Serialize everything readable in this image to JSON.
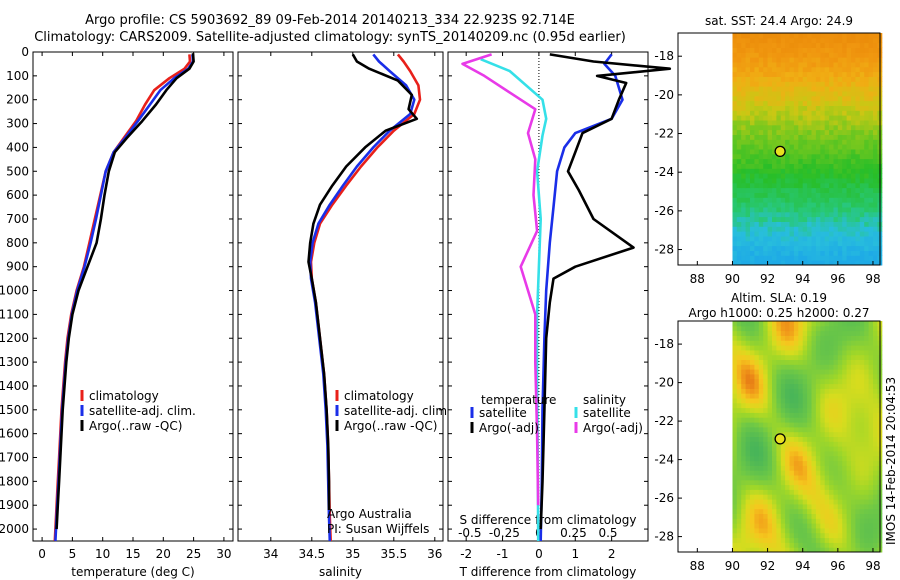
{
  "header": {
    "line1": "Argo profile: CS 5903692_89 09-Feb-2014 20140213_334 22.923S 92.714E",
    "line2": "Climatology: CARS2009. Satellite-adjusted climatology: synTS_20140209.nc (0.95d earlier)"
  },
  "colors": {
    "climatology": "#e8201a",
    "satellite": "#1a2ee8",
    "argo": "#000000",
    "satellite_salinity": "#35e0e8",
    "argo_salinity": "#e83ae8"
  },
  "depth_axis": {
    "ylim": [
      0,
      2050
    ],
    "ticks": [
      0,
      100,
      200,
      300,
      400,
      500,
      600,
      700,
      800,
      900,
      1000,
      1100,
      1200,
      1300,
      1400,
      1500,
      1600,
      1700,
      1800,
      1900,
      2000
    ]
  },
  "chart_data": [
    {
      "type": "line",
      "id": "temperature",
      "xlabel": "temperature (deg C)",
      "xlim": [
        -1.5,
        31.5
      ],
      "xticks": [
        "0",
        "5",
        "10",
        "15",
        "20",
        "25",
        "30"
      ],
      "xtick_values": [
        0,
        5,
        10,
        15,
        20,
        25,
        30
      ],
      "legend": [
        "climatology",
        "satellite-adj. clim.",
        "Argo(..raw -QC)"
      ],
      "series": [
        {
          "name": "climatology",
          "key": "climatology",
          "points": [
            [
              24.3,
              10
            ],
            [
              24.4,
              40
            ],
            [
              23.5,
              70
            ],
            [
              21.0,
              110
            ],
            [
              18.5,
              160
            ],
            [
              17.0,
              220
            ],
            [
              15.5,
              290
            ],
            [
              13.5,
              360
            ],
            [
              11.8,
              420
            ],
            [
              10.5,
              500
            ],
            [
              9.6,
              600
            ],
            [
              8.7,
              700
            ],
            [
              7.8,
              800
            ],
            [
              6.9,
              900
            ],
            [
              5.7,
              1000
            ],
            [
              4.8,
              1100
            ],
            [
              4.2,
              1200
            ],
            [
              3.8,
              1300
            ],
            [
              3.5,
              1400
            ],
            [
              3.2,
              1500
            ],
            [
              3.0,
              1600
            ],
            [
              2.8,
              1700
            ],
            [
              2.6,
              1800
            ],
            [
              2.4,
              1900
            ],
            [
              2.2,
              2000
            ],
            [
              2.1,
              2050
            ]
          ]
        },
        {
          "name": "satellite-adj. clim.",
          "key": "satellite",
          "points": [
            [
              24.8,
              10
            ],
            [
              24.9,
              40
            ],
            [
              24.1,
              70
            ],
            [
              21.8,
              110
            ],
            [
              19.5,
              160
            ],
            [
              17.8,
              220
            ],
            [
              15.8,
              290
            ],
            [
              13.7,
              360
            ],
            [
              11.8,
              420
            ],
            [
              10.5,
              500
            ],
            [
              9.7,
              600
            ],
            [
              8.9,
              700
            ],
            [
              8.0,
              800
            ],
            [
              7.0,
              900
            ],
            [
              5.8,
              1000
            ],
            [
              4.9,
              1100
            ],
            [
              4.3,
              1200
            ],
            [
              3.9,
              1300
            ],
            [
              3.6,
              1400
            ],
            [
              3.3,
              1500
            ],
            [
              3.1,
              1600
            ],
            [
              2.9,
              1700
            ],
            [
              2.7,
              1800
            ],
            [
              2.5,
              1900
            ],
            [
              2.3,
              2000
            ],
            [
              2.2,
              2050
            ]
          ]
        },
        {
          "name": "Argo(..raw -QC)",
          "key": "argo",
          "points": [
            [
              24.9,
              5
            ],
            [
              25.0,
              40
            ],
            [
              24.3,
              70
            ],
            [
              22.2,
              110
            ],
            [
              20.5,
              160
            ],
            [
              18.8,
              220
            ],
            [
              16.5,
              290
            ],
            [
              14.0,
              360
            ],
            [
              12.0,
              420
            ],
            [
              11.0,
              500
            ],
            [
              10.3,
              600
            ],
            [
              9.7,
              700
            ],
            [
              9.0,
              800
            ],
            [
              7.5,
              900
            ],
            [
              6.0,
              1000
            ],
            [
              5.0,
              1100
            ],
            [
              4.4,
              1200
            ],
            [
              4.0,
              1300
            ],
            [
              3.7,
              1400
            ],
            [
              3.4,
              1500
            ],
            [
              3.2,
              1600
            ],
            [
              3.0,
              1700
            ],
            [
              2.8,
              1800
            ],
            [
              2.6,
              1900
            ],
            [
              2.4,
              2000
            ]
          ]
        }
      ]
    },
    {
      "type": "line",
      "id": "salinity",
      "xlabel": "salinity",
      "xlim": [
        33.6,
        36.1
      ],
      "xticks": [
        "34",
        "34.5",
        "35",
        "35.5",
        "36"
      ],
      "xtick_values": [
        34,
        34.5,
        35,
        35.5,
        36
      ],
      "legend": [
        "climatology",
        "satellite-adj. clim.",
        "Argo(..raw -QC)"
      ],
      "annotation": [
        "Argo Australia",
        "PI: Susan Wijffels"
      ],
      "series": [
        {
          "name": "climatology",
          "key": "climatology",
          "points": [
            [
              35.55,
              10
            ],
            [
              35.62,
              40
            ],
            [
              35.7,
              80
            ],
            [
              35.8,
              140
            ],
            [
              35.82,
              200
            ],
            [
              35.75,
              260
            ],
            [
              35.5,
              330
            ],
            [
              35.3,
              400
            ],
            [
              35.1,
              480
            ],
            [
              34.92,
              560
            ],
            [
              34.75,
              640
            ],
            [
              34.6,
              720
            ],
            [
              34.53,
              800
            ],
            [
              34.49,
              880
            ],
            [
              34.5,
              950
            ],
            [
              34.55,
              1050
            ],
            [
              34.6,
              1200
            ],
            [
              34.65,
              1350
            ],
            [
              34.68,
              1500
            ],
            [
              34.7,
              1650
            ],
            [
              34.71,
              1800
            ],
            [
              34.72,
              1950
            ],
            [
              34.73,
              2050
            ]
          ]
        },
        {
          "name": "satellite-adj. clim.",
          "key": "satellite",
          "points": [
            [
              35.25,
              10
            ],
            [
              35.32,
              40
            ],
            [
              35.45,
              80
            ],
            [
              35.65,
              140
            ],
            [
              35.75,
              200
            ],
            [
              35.7,
              260
            ],
            [
              35.45,
              330
            ],
            [
              35.25,
              400
            ],
            [
              35.05,
              480
            ],
            [
              34.88,
              560
            ],
            [
              34.72,
              640
            ],
            [
              34.58,
              720
            ],
            [
              34.51,
              800
            ],
            [
              34.48,
              880
            ],
            [
              34.49,
              950
            ],
            [
              34.54,
              1050
            ],
            [
              34.59,
              1200
            ],
            [
              34.64,
              1350
            ],
            [
              34.67,
              1500
            ],
            [
              34.69,
              1650
            ],
            [
              34.7,
              1800
            ],
            [
              34.71,
              1950
            ],
            [
              34.72,
              2050
            ]
          ]
        },
        {
          "name": "Argo(..raw -QC)",
          "key": "argo",
          "points": [
            [
              35.0,
              10
            ],
            [
              35.05,
              40
            ],
            [
              35.2,
              70
            ],
            [
              35.55,
              120
            ],
            [
              35.72,
              180
            ],
            [
              35.68,
              240
            ],
            [
              35.78,
              280
            ],
            [
              35.4,
              330
            ],
            [
              35.15,
              400
            ],
            [
              34.92,
              480
            ],
            [
              34.75,
              560
            ],
            [
              34.6,
              640
            ],
            [
              34.52,
              720
            ],
            [
              34.48,
              800
            ],
            [
              34.46,
              880
            ],
            [
              34.5,
              950
            ],
            [
              34.55,
              1050
            ],
            [
              34.6,
              1200
            ],
            [
              34.65,
              1350
            ],
            [
              34.68,
              1500
            ],
            [
              34.7,
              1650
            ],
            [
              34.71,
              1800
            ],
            [
              34.71,
              1920
            ]
          ]
        }
      ]
    },
    {
      "type": "line",
      "id": "difference",
      "xlabel": "T difference from climatology",
      "xlabel2": "S difference from climatology",
      "xlim": [
        -2.5,
        3.0
      ],
      "xticks": [
        "-2",
        "-1",
        "0",
        "1",
        "2"
      ],
      "xtick_values": [
        -2,
        -1,
        0,
        1,
        2
      ],
      "x2ticks": [
        "-0.5",
        "-0.25",
        "0",
        "0.25",
        "0.5"
      ],
      "x2tick_values": [
        -1.9,
        -0.95,
        0,
        0.95,
        1.9
      ],
      "legend_temperature_title": "temperature",
      "legend_salinity_title": "salinity",
      "legend_temperature": [
        "satellite",
        "Argo(-adj)"
      ],
      "legend_salinity": [
        "satellite",
        "Argo(-adj)"
      ],
      "series": [
        {
          "name": "satellite",
          "key": "satellite",
          "group": "temperature",
          "points": [
            [
              2.0,
              10
            ],
            [
              1.8,
              50
            ],
            [
              2.1,
              100
            ],
            [
              2.3,
              200
            ],
            [
              2.0,
              280
            ],
            [
              1.0,
              340
            ],
            [
              0.7,
              400
            ],
            [
              0.5,
              500
            ],
            [
              0.4,
              650
            ],
            [
              0.3,
              800
            ],
            [
              0.2,
              1000
            ],
            [
              0.15,
              1200
            ],
            [
              0.1,
              1500
            ],
            [
              0.08,
              1800
            ],
            [
              0.05,
              2050
            ]
          ]
        },
        {
          "name": "Argo(-adj)",
          "key": "argo",
          "group": "temperature",
          "points": [
            [
              0.3,
              10
            ],
            [
              1.5,
              40
            ],
            [
              3.6,
              70
            ],
            [
              1.6,
              100
            ],
            [
              2.4,
              130
            ],
            [
              2.2,
              200
            ],
            [
              2.0,
              280
            ],
            [
              1.2,
              340
            ],
            [
              1.0,
              420
            ],
            [
              0.8,
              500
            ],
            [
              1.1,
              580
            ],
            [
              1.5,
              700
            ],
            [
              2.6,
              820
            ],
            [
              1.0,
              900
            ],
            [
              0.4,
              950
            ],
            [
              0.3,
              1050
            ],
            [
              0.2,
              1200
            ],
            [
              0.15,
              1500
            ],
            [
              0.1,
              1800
            ],
            [
              0.05,
              2000
            ]
          ]
        },
        {
          "name": "satellite",
          "key": "satellite_salinity",
          "group": "salinity",
          "points": [
            [
              -1.6,
              30
            ],
            [
              -0.8,
              80
            ],
            [
              0.1,
              200
            ],
            [
              0.2,
              280
            ],
            [
              0.1,
              350
            ],
            [
              -0.05,
              500
            ],
            [
              0.05,
              700
            ],
            [
              0.0,
              900
            ],
            [
              -0.05,
              1100
            ],
            [
              -0.05,
              1400
            ],
            [
              -0.03,
              1700
            ],
            [
              -0.02,
              2050
            ]
          ]
        },
        {
          "name": "Argo(-adj)",
          "key": "argo_salinity",
          "group": "salinity",
          "points": [
            [
              -1.3,
              10
            ],
            [
              -2.1,
              50
            ],
            [
              -1.5,
              100
            ],
            [
              -0.8,
              170
            ],
            [
              -0.1,
              240
            ],
            [
              -0.3,
              340
            ],
            [
              -0.1,
              450
            ],
            [
              -0.15,
              600
            ],
            [
              -0.05,
              750
            ],
            [
              -0.5,
              900
            ],
            [
              -0.3,
              1000
            ],
            [
              -0.1,
              1100
            ],
            [
              -0.1,
              1300
            ],
            [
              -0.05,
              1600
            ],
            [
              -0.02,
              1900
            ]
          ]
        }
      ]
    },
    {
      "type": "heatmap",
      "id": "sst-map",
      "title": "sat. SST: 24.4  Argo: 24.9",
      "xlim": [
        86.9,
        98.4
      ],
      "ylim": [
        -28.8,
        -16.8
      ],
      "xticks": [
        "88",
        "90",
        "92",
        "94",
        "96",
        "98"
      ],
      "xtick_values": [
        88,
        90,
        92,
        94,
        96,
        98
      ],
      "yticks": [
        "-18",
        "-20",
        "-22",
        "-24",
        "-26",
        "-28"
      ],
      "ytick_values": [
        -18,
        -20,
        -22,
        -24,
        -26,
        -28
      ],
      "data_lon_min": 90,
      "marker": [
        92.714,
        -22.923
      ]
    },
    {
      "type": "heatmap",
      "id": "sla-map",
      "title1": "Altim. SLA: 0.19",
      "title2": "Argo h1000: 0.25 h2000: 0.27",
      "xlim": [
        86.9,
        98.4
      ],
      "ylim": [
        -28.8,
        -16.8
      ],
      "xticks": [
        "88",
        "90",
        "92",
        "94",
        "96",
        "98"
      ],
      "xtick_values": [
        88,
        90,
        92,
        94,
        96,
        98
      ],
      "yticks": [
        "-18",
        "-20",
        "-22",
        "-24",
        "-26",
        "-28"
      ],
      "ytick_values": [
        -18,
        -20,
        -22,
        -24,
        -26,
        -28
      ],
      "data_lon_min": 90,
      "marker": [
        92.714,
        -22.923
      ]
    }
  ],
  "side_label": "IMOS 14-Feb-2014 20:04:53"
}
